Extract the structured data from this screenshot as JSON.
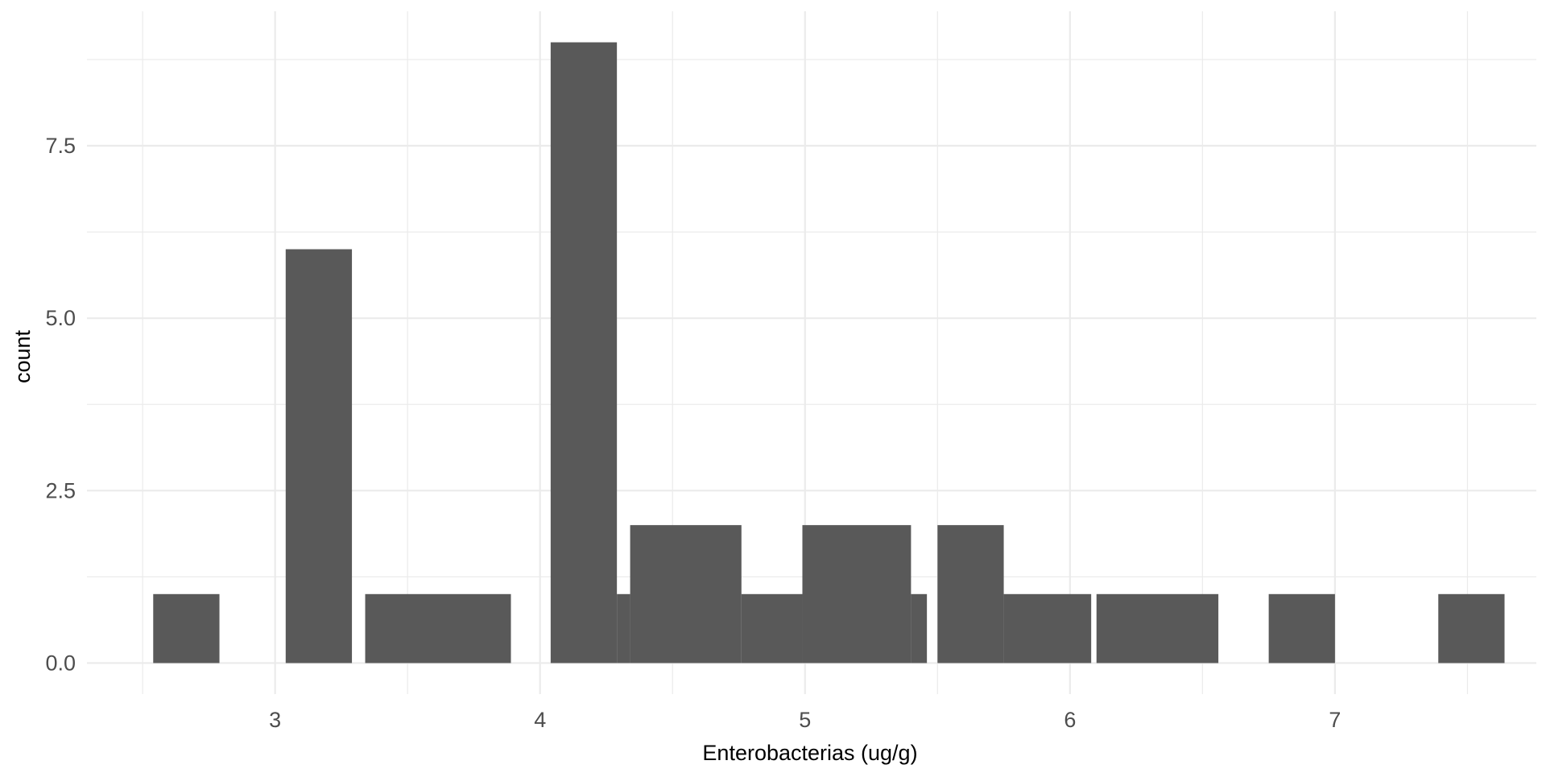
{
  "chart_data": {
    "type": "bar",
    "subtype": "histogram",
    "title": "",
    "xlabel": "Enterobacterias (ug/g)",
    "ylabel": "count",
    "xlim": [
      2.29,
      7.76
    ],
    "ylim": [
      -0.45,
      9.45
    ],
    "x_ticks": [
      3,
      4,
      5,
      6,
      7
    ],
    "y_ticks": [
      0.0,
      2.5,
      5.0,
      7.5
    ],
    "y_tick_labels": [
      "0.0",
      "2.5",
      "5.0",
      "7.5"
    ],
    "bins": [
      {
        "x0": 2.54,
        "x1": 2.79,
        "count": 1
      },
      {
        "x0": 2.79,
        "x1": 3.04,
        "count": 0
      },
      {
        "x0": 3.04,
        "x1": 3.29,
        "count": 6
      },
      {
        "x0": 3.34,
        "x1": 3.89,
        "count": 1
      },
      {
        "x0": 4.04,
        "x1": 4.29,
        "count": 9
      },
      {
        "x0": 4.29,
        "x1": 4.34,
        "count": 1
      },
      {
        "x0": 4.34,
        "x1": 4.76,
        "count": 2
      },
      {
        "x0": 4.76,
        "x1": 4.99,
        "count": 1
      },
      {
        "x0": 4.99,
        "x1": 5.4,
        "count": 2
      },
      {
        "x0": 5.4,
        "x1": 5.46,
        "count": 1
      },
      {
        "x0": 5.5,
        "x1": 5.75,
        "count": 2
      },
      {
        "x0": 5.75,
        "x1": 6.08,
        "count": 1
      },
      {
        "x0": 6.1,
        "x1": 6.56,
        "count": 1
      },
      {
        "x0": 6.75,
        "x1": 7.0,
        "count": 1
      },
      {
        "x0": 7.39,
        "x1": 7.64,
        "count": 1
      }
    ],
    "grid": true,
    "bar_color": "#595959",
    "grid_color": "#ebebeb",
    "background": "#ffffff"
  }
}
